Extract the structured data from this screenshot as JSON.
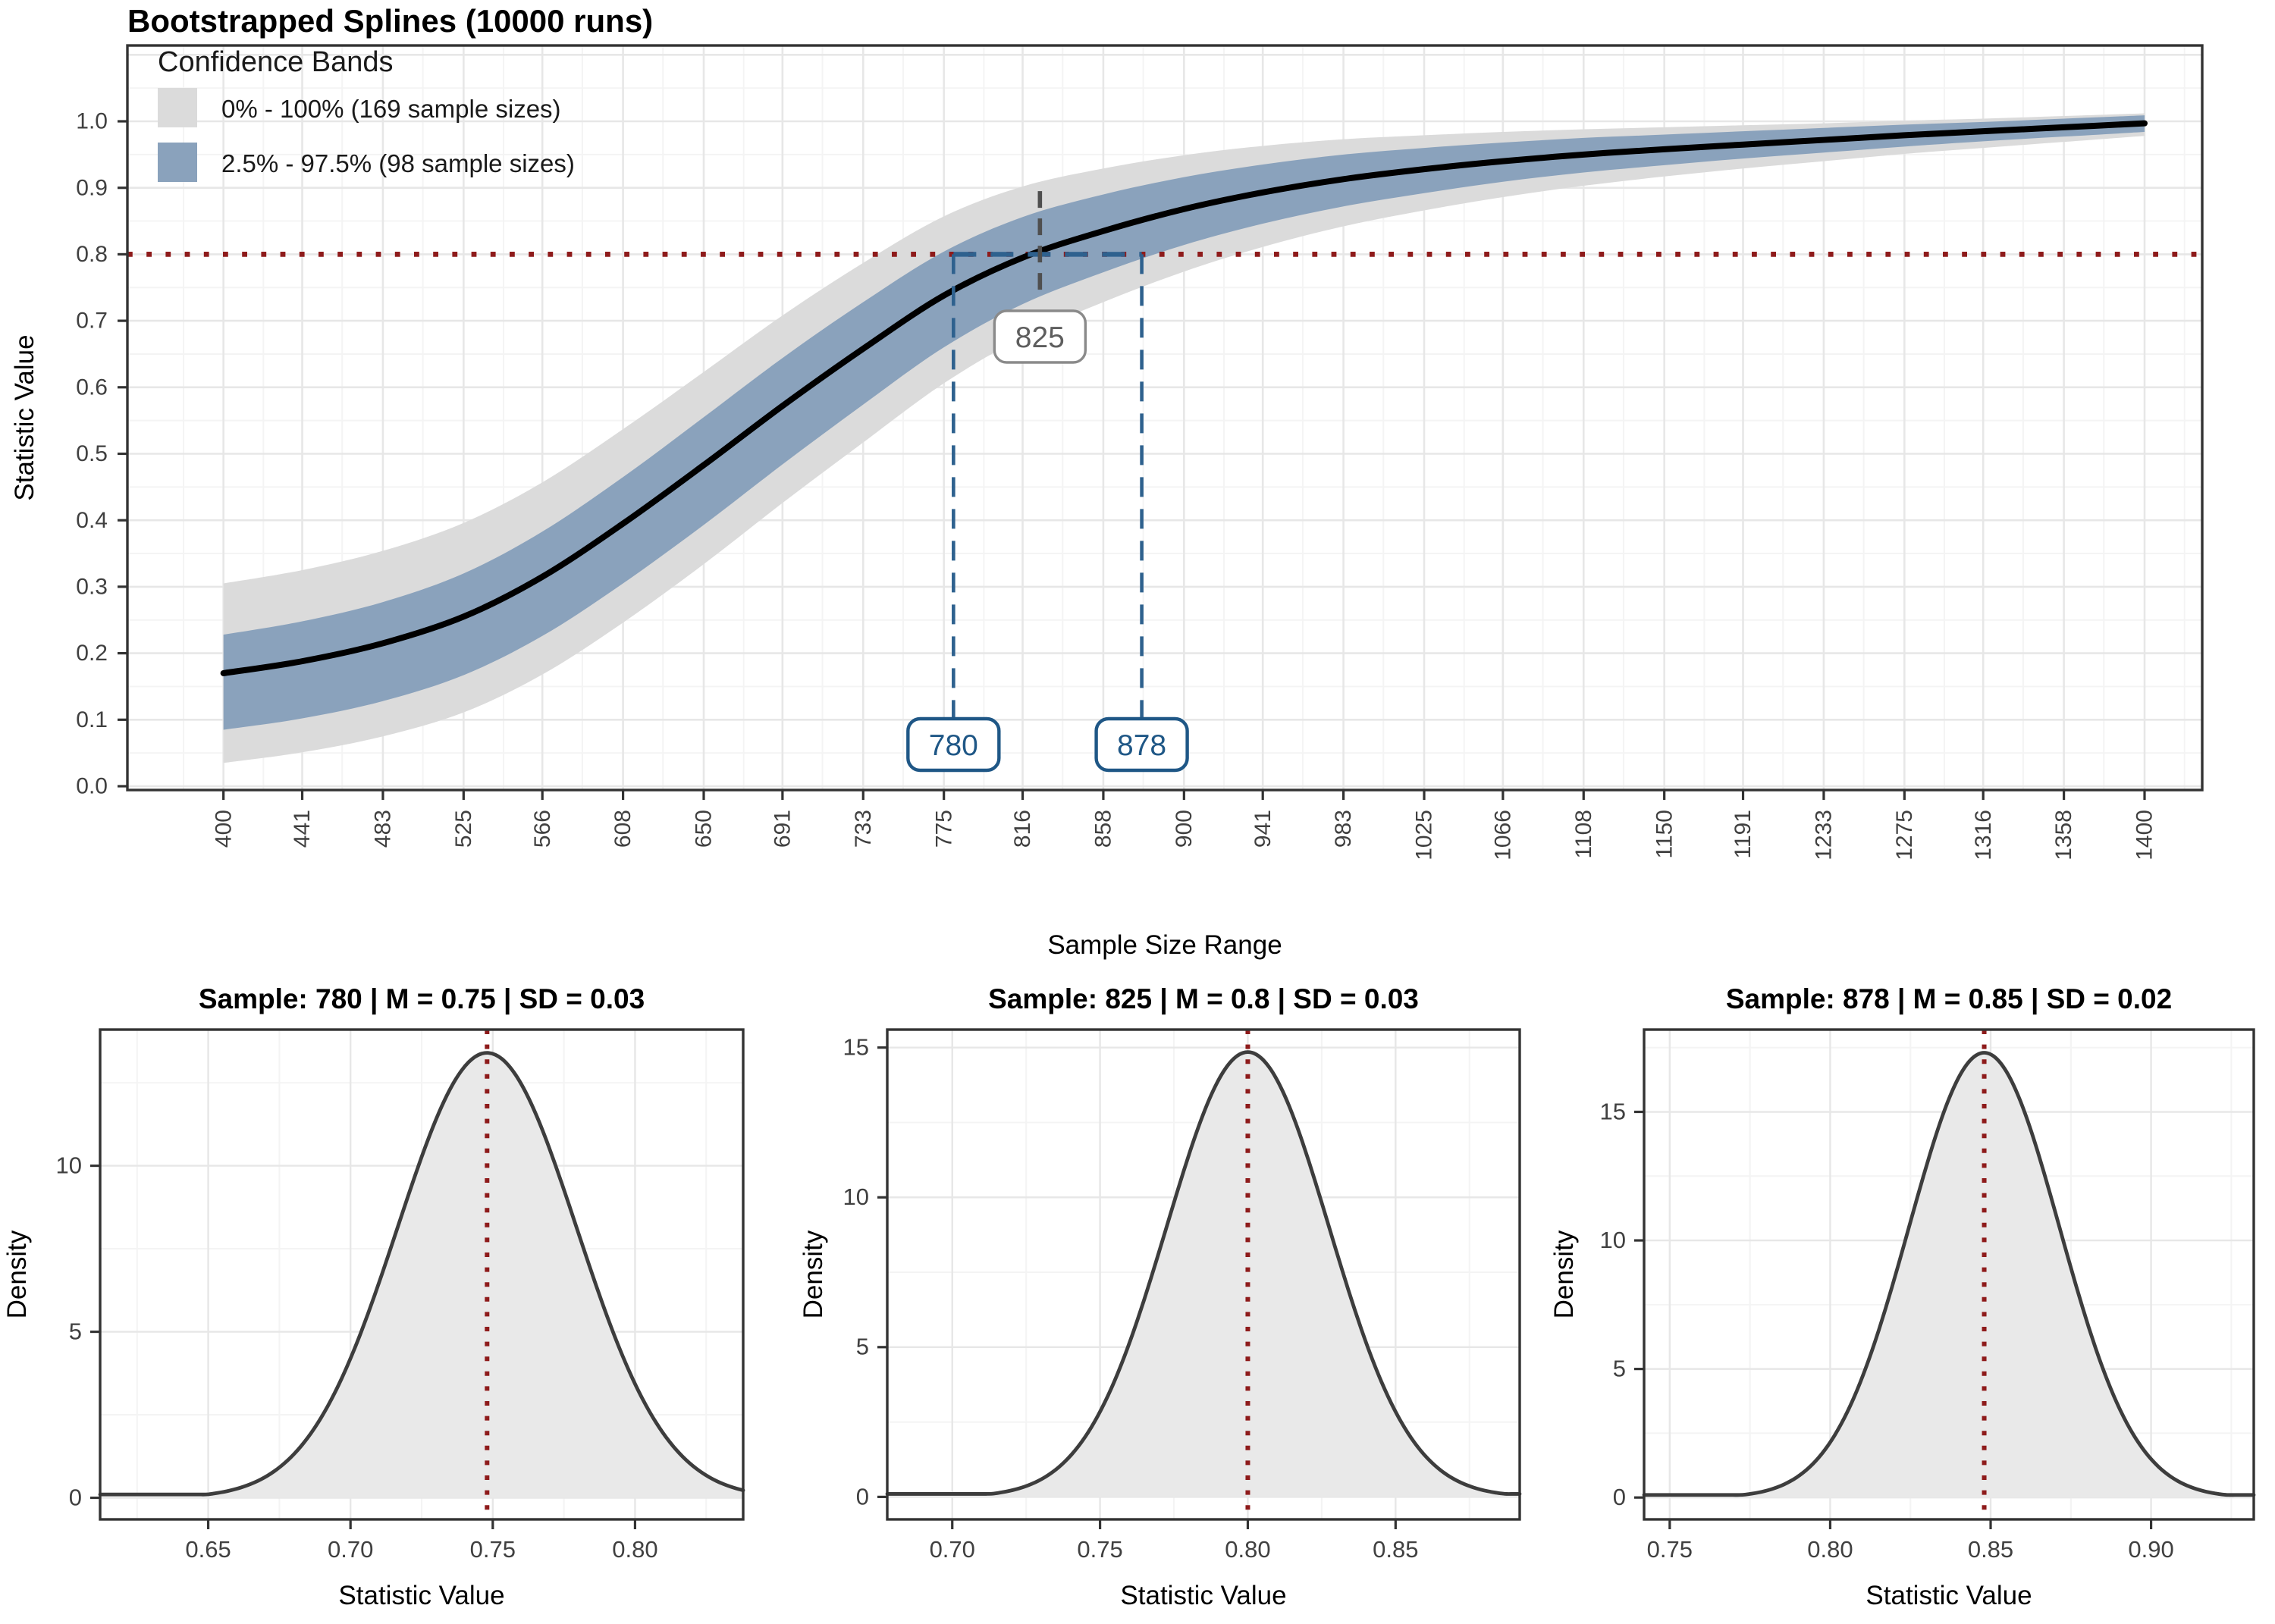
{
  "colors": {
    "background": "#ffffff",
    "band_outer": "#dbdbdb",
    "band_inner": "#8aa2bc",
    "mean_line": "#000000",
    "reference_red": "#8e1b1b",
    "annotation_blue": "#1f5786",
    "annotation_blue_line": "#2e618e",
    "annotation_gray_line": "#4f4f4f",
    "annotation_gray_text": "#5e5e5e",
    "annotation_gray_border": "#8a8a8a",
    "grid_major": "#e7e7e7",
    "grid_minor": "#f4f4f4",
    "panel_border": "#333333",
    "axis_text": "#404040",
    "axis_title": "#000000",
    "density_fill": "#e9e9e9",
    "density_line": "#3d3d3d"
  },
  "chart_data": [
    {
      "type": "line",
      "title": "Bootstrapped Splines (10000 runs)",
      "xlabel": "Sample Size Range",
      "ylabel": "Statistic Value",
      "x_domain": [
        350,
        1430
      ],
      "y_domain": [
        -0.006,
        1.114
      ],
      "x_ticks": [
        400,
        441,
        483,
        525,
        566,
        608,
        650,
        691,
        733,
        775,
        816,
        858,
        900,
        941,
        983,
        1025,
        1066,
        1108,
        1150,
        1191,
        1233,
        1275,
        1316,
        1358,
        1400
      ],
      "y_ticks": [
        0.0,
        0.1,
        0.2,
        0.3,
        0.4,
        0.5,
        0.6,
        0.7,
        0.8,
        0.9,
        1.0
      ],
      "grid": true,
      "legend": {
        "title": "Confidence Bands",
        "position": "inside-top-left",
        "items": [
          {
            "label": "0% - 100% (169 sample sizes)",
            "color": "#dbdbdb"
          },
          {
            "label": "2.5% - 97.5% (98 sample sizes)",
            "color": "#8aa2bc"
          }
        ]
      },
      "reference_line": {
        "y": 0.8,
        "color": "#8e1b1b",
        "style": "dotted"
      },
      "annotations": [
        {
          "label": "825",
          "x": 825,
          "type": "spline-crosses-0.8",
          "line_from": 0.895,
          "line_to": 0.732,
          "box_y": 0.493
        },
        {
          "label": "780",
          "x": 780,
          "type": "upper-band-crosses-0.8",
          "line_from": 0.8,
          "box_bottom": true
        },
        {
          "label": "878",
          "x": 878,
          "type": "lower-band-crosses-0.8",
          "line_from": 0.8,
          "box_bottom": true
        }
      ],
      "series": {
        "x": [
          400,
          441,
          483,
          525,
          566,
          608,
          650,
          691,
          733,
          775,
          816,
          858,
          900,
          941,
          983,
          1025,
          1066,
          1108,
          1150,
          1191,
          1233,
          1275,
          1316,
          1358,
          1400
        ],
        "mean": [
          0.17,
          0.188,
          0.215,
          0.255,
          0.315,
          0.395,
          0.483,
          0.572,
          0.658,
          0.738,
          0.795,
          0.835,
          0.868,
          0.893,
          0.913,
          0.928,
          0.94,
          0.95,
          0.958,
          0.965,
          0.972,
          0.979,
          0.985,
          0.991,
          0.997
        ],
        "inner_upper": [
          0.228,
          0.248,
          0.277,
          0.32,
          0.383,
          0.465,
          0.555,
          0.644,
          0.728,
          0.804,
          0.856,
          0.89,
          0.916,
          0.935,
          0.95,
          0.96,
          0.968,
          0.975,
          0.98,
          0.985,
          0.99,
          0.995,
          0.999,
          1.004,
          1.009
        ],
        "inner_lower": [
          0.085,
          0.102,
          0.128,
          0.167,
          0.226,
          0.305,
          0.393,
          0.484,
          0.574,
          0.66,
          0.725,
          0.773,
          0.814,
          0.846,
          0.872,
          0.892,
          0.909,
          0.923,
          0.934,
          0.944,
          0.953,
          0.962,
          0.97,
          0.977,
          0.984
        ],
        "outer_upper": [
          0.305,
          0.325,
          0.354,
          0.396,
          0.457,
          0.537,
          0.623,
          0.708,
          0.787,
          0.857,
          0.902,
          0.929,
          0.949,
          0.963,
          0.973,
          0.979,
          0.984,
          0.988,
          0.991,
          0.994,
          0.997,
          1.001,
          1.004,
          1.008,
          1.012
        ],
        "outer_lower": [
          0.035,
          0.051,
          0.075,
          0.111,
          0.168,
          0.246,
          0.334,
          0.426,
          0.517,
          0.606,
          0.675,
          0.728,
          0.774,
          0.811,
          0.842,
          0.866,
          0.886,
          0.903,
          0.917,
          0.929,
          0.94,
          0.951,
          0.96,
          0.969,
          0.978
        ]
      }
    },
    {
      "type": "area",
      "title": "Sample: 780 | M = 0.75 | SD = 0.03",
      "xlabel": "Statistic Value",
      "ylabel": "Density",
      "sample": 780,
      "mean": 0.748,
      "sd": 0.0315,
      "peak": 13.4,
      "xlim": [
        0.612,
        0.838
      ],
      "ylim": [
        -0.65,
        14.1
      ],
      "x_ticks": [
        0.65,
        0.7,
        0.75,
        0.8
      ],
      "y_ticks": [
        0,
        5,
        10
      ],
      "vline": 0.748
    },
    {
      "type": "area",
      "title": "Sample: 825 | M = 0.8 | SD = 0.03",
      "xlabel": "Statistic Value",
      "ylabel": "Density",
      "sample": 825,
      "mean": 0.8,
      "sd": 0.0275,
      "peak": 14.85,
      "xlim": [
        0.678,
        0.892
      ],
      "ylim": [
        -0.75,
        15.6
      ],
      "x_ticks": [
        0.7,
        0.75,
        0.8,
        0.85
      ],
      "y_ticks": [
        0,
        5,
        10,
        15
      ],
      "vline": 0.8
    },
    {
      "type": "area",
      "title": "Sample: 878 | M = 0.85 | SD = 0.02",
      "xlabel": "Statistic Value",
      "ylabel": "Density",
      "sample": 878,
      "mean": 0.848,
      "sd": 0.0235,
      "peak": 17.3,
      "xlim": [
        0.742,
        0.932
      ],
      "ylim": [
        -0.85,
        18.2
      ],
      "x_ticks": [
        0.75,
        0.8,
        0.85,
        0.9
      ],
      "y_ticks": [
        0,
        5,
        10,
        15
      ],
      "vline": 0.848
    }
  ]
}
